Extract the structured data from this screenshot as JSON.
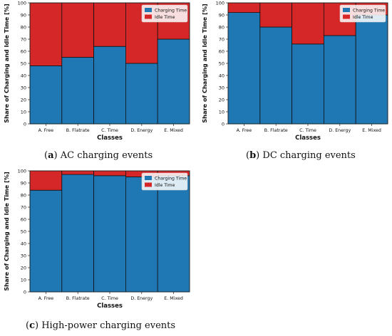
{
  "colors": {
    "charging": "#1f77b4",
    "idle": "#d62728"
  },
  "captions": {
    "a": {
      "letter": "a",
      "text": "AC charging events"
    },
    "b": {
      "letter": "b",
      "text": "DC charging events"
    },
    "c": {
      "letter": "c",
      "text": "High-power charging events"
    }
  },
  "chart_data": [
    {
      "id": "a",
      "type": "bar",
      "stacked": true,
      "categories": [
        "A. Free",
        "B. Flatrate",
        "C. Time",
        "D. Energy",
        "E. Mixed"
      ],
      "series": [
        {
          "name": "Charging Time",
          "values": [
            48,
            55,
            64,
            50,
            70
          ]
        },
        {
          "name": "Idle Time",
          "values": [
            52,
            45,
            36,
            50,
            30
          ]
        }
      ],
      "xlabel": "Classes",
      "ylabel": "Share of Charging and Idle Time [%]",
      "ylim": [
        0,
        100
      ],
      "yticks": [
        0,
        10,
        20,
        30,
        40,
        50,
        60,
        70,
        80,
        90,
        100
      ],
      "legend": "top-right",
      "grid": true
    },
    {
      "id": "b",
      "type": "bar",
      "stacked": true,
      "categories": [
        "A. Free",
        "B. Flatrate",
        "C. Time",
        "D. Energy",
        "E. Mixed"
      ],
      "series": [
        {
          "name": "Charging Time",
          "values": [
            92,
            80,
            66,
            73,
            90
          ]
        },
        {
          "name": "Idle Time",
          "values": [
            8,
            20,
            34,
            27,
            10
          ]
        }
      ],
      "xlabel": "Classes",
      "ylabel": "Share of Charging and Idle Time [%]",
      "ylim": [
        0,
        100
      ],
      "yticks": [
        0,
        10,
        20,
        30,
        40,
        50,
        60,
        70,
        80,
        90,
        100
      ],
      "legend": "top-right",
      "grid": true
    },
    {
      "id": "c",
      "type": "bar",
      "stacked": true,
      "categories": [
        "A. Free",
        "B. Flatrate",
        "C. Time",
        "D. Energy",
        "E. Mixed"
      ],
      "series": [
        {
          "name": "Charging Time",
          "values": [
            84,
            97,
            96,
            95,
            96
          ]
        },
        {
          "name": "Idle Time",
          "values": [
            16,
            3,
            4,
            5,
            4
          ]
        }
      ],
      "xlabel": "Classes",
      "ylabel": "Share of Charging and Idle Time [%]",
      "ylim": [
        0,
        100
      ],
      "yticks": [
        0,
        10,
        20,
        30,
        40,
        50,
        60,
        70,
        80,
        90,
        100
      ],
      "legend": "top-right",
      "grid": true
    }
  ]
}
